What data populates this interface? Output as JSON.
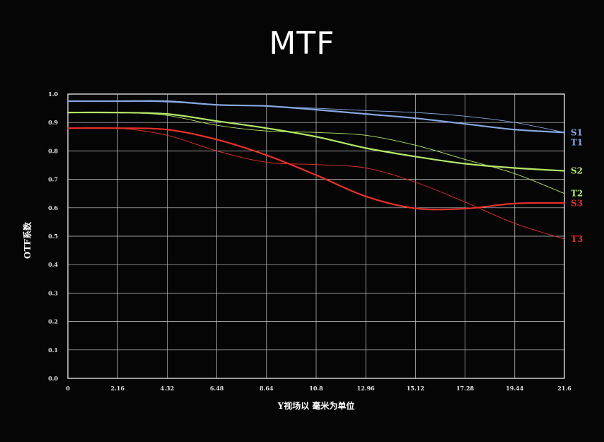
{
  "chart_data": {
    "type": "line",
    "title": "MTF",
    "xlabel": "Y视场以 毫米为单位",
    "ylabel": "OTF系数",
    "xlim": [
      0,
      21.6
    ],
    "ylim": [
      0,
      1.0
    ],
    "grid": true,
    "x_ticks": [
      "0",
      "2.16",
      "4.32",
      "6.48",
      "8.64",
      "10.8",
      "12.96",
      "15.12",
      "17.28",
      "19.44",
      "21.6"
    ],
    "y_ticks": [
      "0.0",
      "0.1",
      "0.2",
      "0.3",
      "0.4",
      "0.5",
      "0.6",
      "0.7",
      "0.8",
      "0.9",
      "1.0"
    ],
    "legend": "right-edge labels",
    "series": [
      {
        "name": "S1",
        "color": "#86a8e0",
        "width": 2.2,
        "x": [
          0,
          2.16,
          4.32,
          6.48,
          8.64,
          10.8,
          12.96,
          15.12,
          17.28,
          19.44,
          21.6
        ],
        "values": [
          0.975,
          0.975,
          0.975,
          0.962,
          0.958,
          0.945,
          0.93,
          0.915,
          0.895,
          0.875,
          0.865
        ]
      },
      {
        "name": "T1",
        "color": "#86a8e0",
        "width": 0.9,
        "x": [
          0,
          2.16,
          4.32,
          6.48,
          8.64,
          10.8,
          12.96,
          15.12,
          17.28,
          19.44,
          21.6
        ],
        "values": [
          0.975,
          0.975,
          0.972,
          0.962,
          0.957,
          0.95,
          0.942,
          0.935,
          0.922,
          0.9,
          0.865
        ]
      },
      {
        "name": "S2",
        "color": "#b5e86a",
        "width": 2.2,
        "x": [
          0,
          2.16,
          4.32,
          6.48,
          8.64,
          10.8,
          12.96,
          15.12,
          17.28,
          19.44,
          21.6
        ],
        "values": [
          0.935,
          0.935,
          0.93,
          0.905,
          0.88,
          0.85,
          0.81,
          0.78,
          0.755,
          0.74,
          0.73
        ]
      },
      {
        "name": "T2",
        "color": "#b5e86a",
        "width": 0.9,
        "x": [
          0,
          2.16,
          4.32,
          6.48,
          8.64,
          10.8,
          12.96,
          15.12,
          17.28,
          19.44,
          21.6
        ],
        "values": [
          0.935,
          0.935,
          0.925,
          0.89,
          0.87,
          0.865,
          0.855,
          0.82,
          0.77,
          0.72,
          0.65
        ]
      },
      {
        "name": "S3",
        "color": "#e8302a",
        "width": 2.2,
        "x": [
          0,
          2.16,
          4.32,
          6.48,
          8.64,
          10.8,
          12.96,
          15.12,
          17.28,
          19.44,
          21.6
        ],
        "values": [
          0.88,
          0.88,
          0.875,
          0.84,
          0.785,
          0.715,
          0.64,
          0.598,
          0.597,
          0.615,
          0.617
        ]
      },
      {
        "name": "T3",
        "color": "#e8302a",
        "width": 0.9,
        "x": [
          0,
          2.16,
          4.32,
          6.48,
          8.64,
          10.8,
          12.96,
          15.12,
          17.28,
          19.44,
          21.6
        ],
        "values": [
          0.88,
          0.88,
          0.855,
          0.8,
          0.76,
          0.752,
          0.74,
          0.69,
          0.62,
          0.545,
          0.49
        ]
      }
    ]
  }
}
